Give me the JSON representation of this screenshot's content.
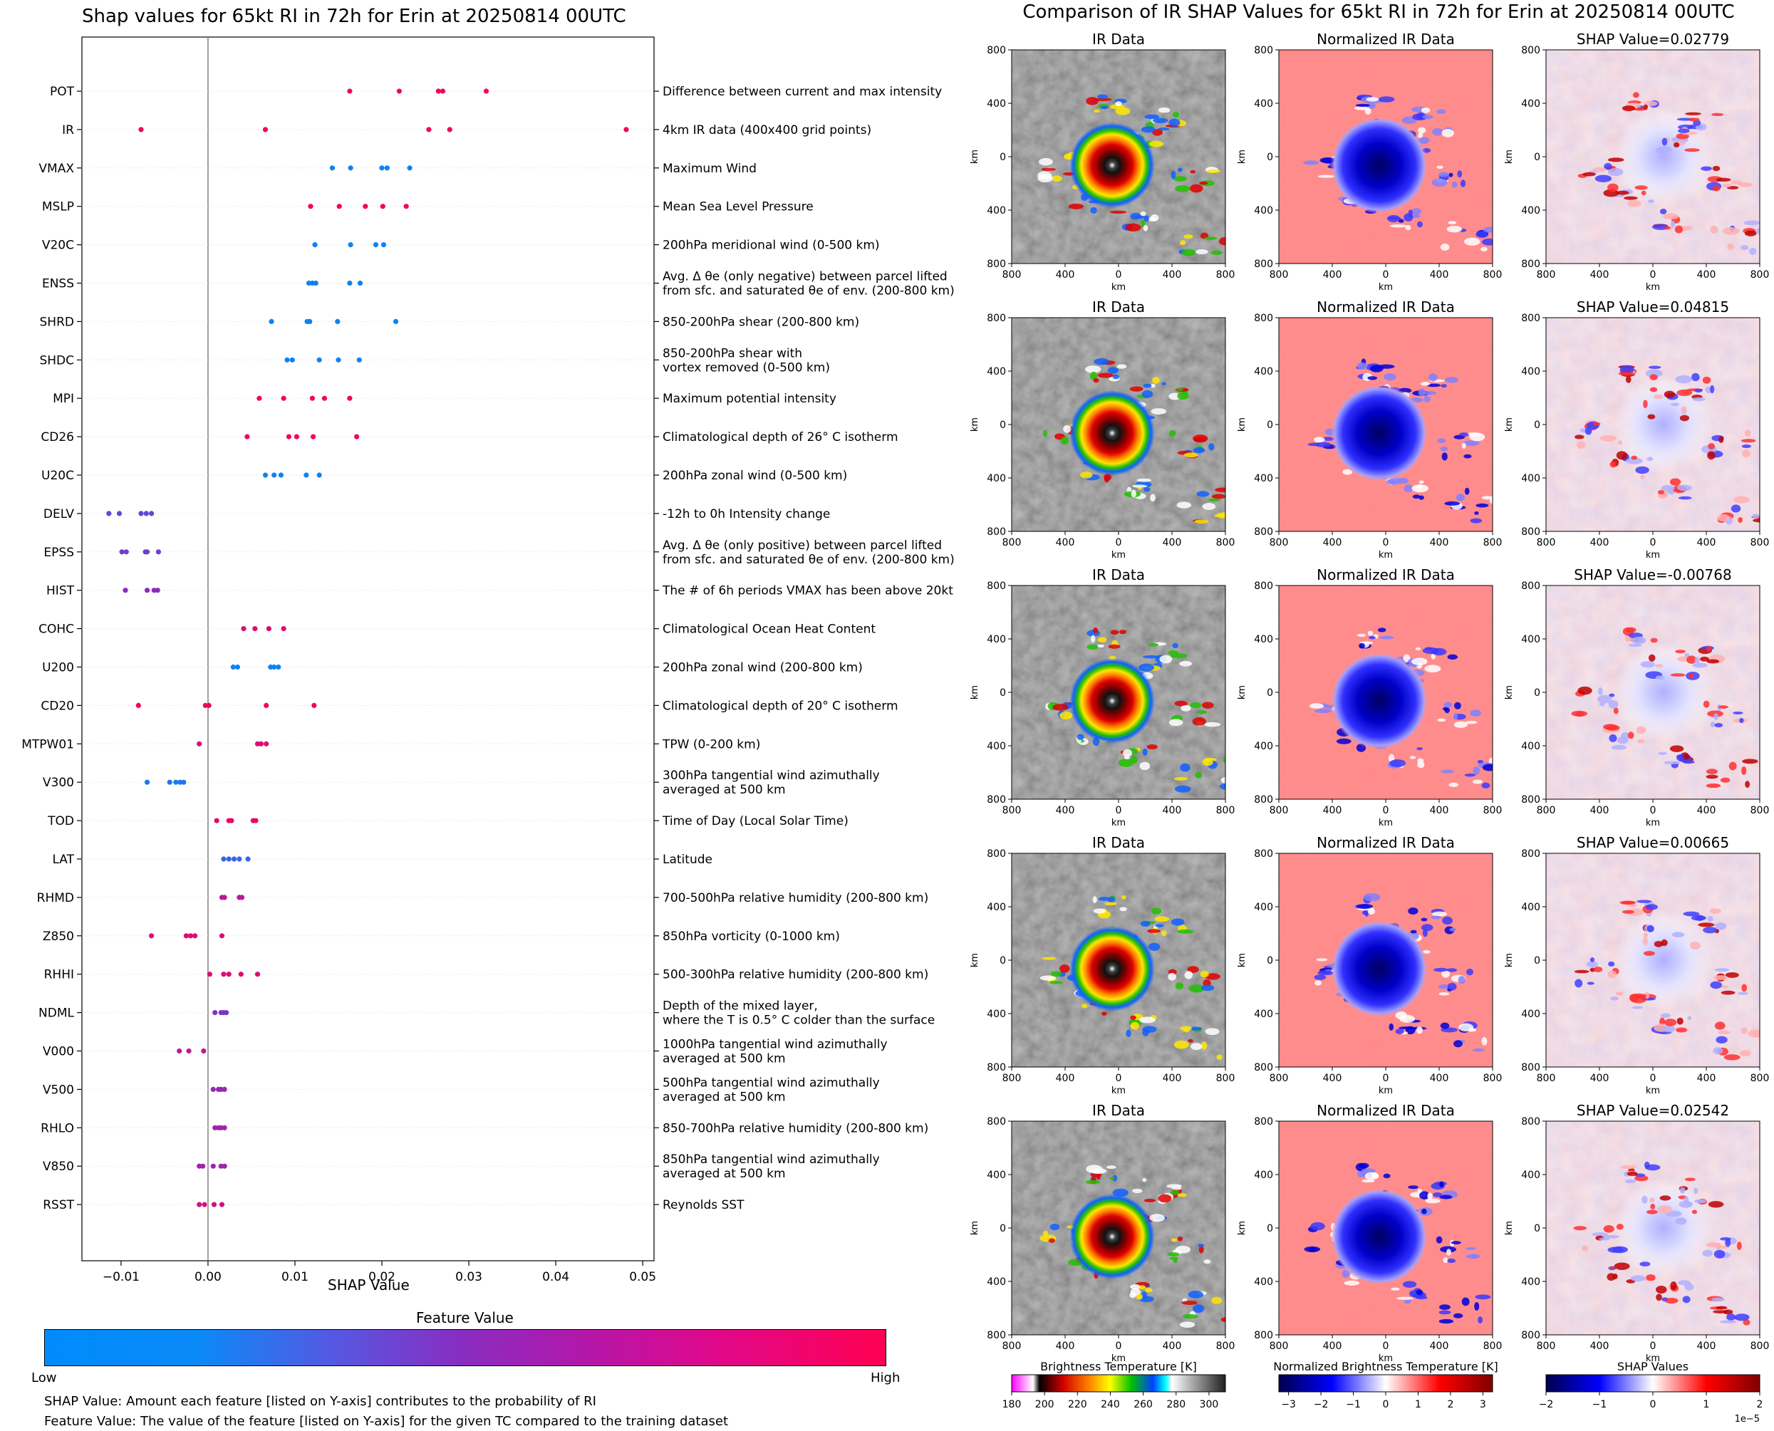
{
  "left": {
    "title": "Shap values for 65kt RI in 72h for Erin at 20250814 00UTC",
    "xlabel": "SHAP Value",
    "colorbar_title": "Feature Value",
    "colorbar_low": "Low",
    "colorbar_high": "High",
    "footnote1": "SHAP Value: Amount each feature [listed on Y-axis] contributes to the probability of RI",
    "footnote2": "Feature Value: The value of the feature [listed on Y-axis] for the given TC compared to the training dataset",
    "colors": {
      "low": "#008bfb",
      "mid": "#8a2cc0",
      "high": "#ff0052"
    }
  },
  "chart_data": [
    {
      "type": "scatter",
      "title": "Shap values for 65kt RI in 72h for Erin at 20250814 00UTC",
      "xlabel": "SHAP Value",
      "xlim": [
        -0.0145,
        0.0513
      ],
      "xticks": [
        -0.01,
        0.0,
        0.01,
        0.02,
        0.03,
        0.04,
        0.05
      ],
      "xtick_labels": [
        "−0.01",
        "0.00",
        "0.01",
        "0.02",
        "0.03",
        "0.04",
        "0.05"
      ],
      "vline_at": 0,
      "legend": "colorbar below plot (Low → High feature value)",
      "features": [
        {
          "name": "POT",
          "desc": "Difference between current and max intensity",
          "fv": 0.95,
          "shap": [
            0.0163,
            0.022,
            0.0265,
            0.027,
            0.032
          ]
        },
        {
          "name": "IR",
          "desc": "4km IR data (400x400 grid points)",
          "fv": 0.95,
          "shap": [
            -0.0077,
            0.0066,
            0.0254,
            0.0278,
            0.0481
          ]
        },
        {
          "name": "VMAX",
          "desc": "Maximum Wind",
          "fv": 0.05,
          "shap": [
            0.0143,
            0.0164,
            0.02,
            0.0206,
            0.0232
          ]
        },
        {
          "name": "MSLP",
          "desc": "Mean Sea Level Pressure",
          "fv": 0.95,
          "shap": [
            0.0118,
            0.0151,
            0.0181,
            0.0201,
            0.0228
          ]
        },
        {
          "name": "V20C",
          "desc": "200hPa meridional wind (0-500 km)",
          "fv": 0.05,
          "shap": [
            0.0123,
            0.0164,
            0.0193,
            0.0202
          ]
        },
        {
          "name": "ENSS",
          "desc": "Avg. Δ θe (only negative) between parcel lifted\nfrom sfc. and saturated θe of env. (200-800 km)",
          "fv": 0.05,
          "shap": [
            0.0116,
            0.012,
            0.0124,
            0.0163,
            0.0175
          ]
        },
        {
          "name": "SHRD",
          "desc": "850-200hPa shear (200-800 km)",
          "fv": 0.05,
          "shap": [
            0.0073,
            0.0114,
            0.0117,
            0.0149,
            0.0216
          ]
        },
        {
          "name": "SHDC",
          "desc": "850-200hPa shear with\nvortex removed (0-500 km)",
          "fv": 0.05,
          "shap": [
            0.0091,
            0.0097,
            0.0128,
            0.015,
            0.0174
          ]
        },
        {
          "name": "MPI",
          "desc": "Maximum potential intensity",
          "fv": 0.95,
          "shap": [
            0.0059,
            0.0087,
            0.012,
            0.0134,
            0.0163
          ]
        },
        {
          "name": "CD26",
          "desc": "Climatological depth of 26° C isotherm",
          "fv": 0.95,
          "shap": [
            0.0045,
            0.0093,
            0.0102,
            0.0121,
            0.0171
          ]
        },
        {
          "name": "U20C",
          "desc": "200hPa zonal wind (0-500 km)",
          "fv": 0.05,
          "shap": [
            0.0066,
            0.0076,
            0.0084,
            0.0113,
            0.0128
          ]
        },
        {
          "name": "DELV",
          "desc": "-12h to 0h Intensity change",
          "fv": 0.35,
          "shap": [
            -0.0114,
            -0.0102,
            -0.0077,
            -0.0071,
            -0.0065
          ]
        },
        {
          "name": "EPSS",
          "desc": "Avg. Δ θe (only positive) between parcel lifted\nfrom sfc. and saturated θe of env. (200-800 km)",
          "fv": 0.4,
          "shap": [
            -0.0099,
            -0.0094,
            -0.0072,
            -0.007,
            -0.0057
          ]
        },
        {
          "name": "HIST",
          "desc": "The # of 6h periods VMAX has been above 20kt",
          "fv": 0.5,
          "shap": [
            -0.0095,
            -0.007,
            -0.0062,
            -0.0058
          ]
        },
        {
          "name": "COHC",
          "desc": "Climatological Ocean Heat Content",
          "fv": 0.85,
          "shap": [
            0.0041,
            0.0054,
            0.007,
            0.0087
          ]
        },
        {
          "name": "U200",
          "desc": "200hPa zonal wind (200-800 km)",
          "fv": 0.05,
          "shap": [
            0.0029,
            0.0034,
            0.0072,
            0.0076,
            0.0081
          ]
        },
        {
          "name": "CD20",
          "desc": "Climatological depth of 20° C isotherm",
          "fv": 0.95,
          "shap": [
            -0.008,
            -0.0003,
            0.0001,
            0.0067,
            0.0122
          ]
        },
        {
          "name": "MTPW01",
          "desc": "TPW (0-200 km)",
          "fv": 0.85,
          "shap": [
            -0.001,
            0.0057,
            0.0061,
            0.0067
          ]
        },
        {
          "name": "V300",
          "desc": "300hPa tangential wind azimuthally\naveraged at 500 km",
          "fv": 0.1,
          "shap": [
            -0.007,
            -0.0044,
            -0.0037,
            -0.0032,
            -0.0028
          ]
        },
        {
          "name": "TOD",
          "desc": "Time of Day (Local Solar Time)",
          "fv": 0.9,
          "shap": [
            0.001,
            0.0024,
            0.0027,
            0.0052,
            0.0055
          ]
        },
        {
          "name": "LAT",
          "desc": "Latitude",
          "fv": 0.2,
          "shap": [
            0.0018,
            0.0024,
            0.003,
            0.0036,
            0.0046
          ]
        },
        {
          "name": "RHMD",
          "desc": "700-500hPa relative humidity (200-800 km)",
          "fv": 0.7,
          "shap": [
            0.0016,
            0.0019,
            0.0036,
            0.0039
          ]
        },
        {
          "name": "Z850",
          "desc": "850hPa vorticity (0-1000 km)",
          "fv": 0.85,
          "shap": [
            -0.0065,
            -0.0025,
            -0.002,
            -0.0015,
            0.0016
          ]
        },
        {
          "name": "RHHI",
          "desc": "500-300hPa relative humidity (200-800 km)",
          "fv": 0.85,
          "shap": [
            0.0002,
            0.0018,
            0.0024,
            0.0038,
            0.0057
          ]
        },
        {
          "name": "NDML",
          "desc": "Depth of the mixed layer,\nwhere the T is 0.5° C colder than the surface",
          "fv": 0.45,
          "shap": [
            0.0008,
            0.0015,
            0.0018,
            0.0021
          ]
        },
        {
          "name": "V000",
          "desc": "1000hPa tangential wind azimuthally\naveraged at 500 km",
          "fv": 0.7,
          "shap": [
            -0.0033,
            -0.0022,
            -0.0005
          ]
        },
        {
          "name": "V500",
          "desc": "500hPa tangential wind azimuthally\naveraged at 500 km",
          "fv": 0.55,
          "shap": [
            0.0006,
            0.0012,
            0.0015,
            0.0019
          ]
        },
        {
          "name": "RHLO",
          "desc": "850-700hPa relative humidity (200-800 km)",
          "fv": 0.6,
          "shap": [
            0.0008,
            0.0012,
            0.0015,
            0.0019
          ]
        },
        {
          "name": "V850",
          "desc": "850hPa tangential wind azimuthally\naveraged at 500 km",
          "fv": 0.6,
          "shap": [
            -0.001,
            -0.0006,
            0.0006,
            0.0015,
            0.0019
          ]
        },
        {
          "name": "RSST",
          "desc": "Reynolds SST",
          "fv": 0.8,
          "shap": [
            -0.001,
            -0.0004,
            0.0007,
            0.0016
          ]
        }
      ]
    },
    {
      "type": "heatmap",
      "title": "Comparison of IR SHAP Values for 65kt RI in 72h for Erin at 20250814 00UTC",
      "rows": [
        {
          "ir_title": "IR Data",
          "norm_title": "Normalized IR Data",
          "shap_title": "SHAP Value=0.02779"
        },
        {
          "ir_title": "IR Data",
          "norm_title": "Normalized IR Data",
          "shap_title": "SHAP Value=0.04815"
        },
        {
          "ir_title": "IR Data",
          "norm_title": "Normalized IR Data",
          "shap_title": "SHAP Value=-0.00768"
        },
        {
          "ir_title": "IR Data",
          "norm_title": "Normalized IR Data",
          "shap_title": "SHAP Value=0.00665"
        },
        {
          "ir_title": "IR Data",
          "norm_title": "Normalized IR Data",
          "shap_title": "SHAP Value=0.02542"
        }
      ],
      "axis_label": "km",
      "axis_ticks": [
        "800",
        "400",
        "0",
        "400",
        "800"
      ],
      "colorbars": [
        {
          "title": "Brightness Temperature [K]",
          "ticks": [
            "180",
            "200",
            "220",
            "240",
            "260",
            "280",
            "300"
          ],
          "range": [
            180,
            310
          ]
        },
        {
          "title": "Normalized Brightness Temperature [K]",
          "ticks": [
            "−3",
            "−2",
            "−1",
            "0",
            "1",
            "2",
            "3"
          ],
          "range": [
            -3.3,
            3.3
          ]
        },
        {
          "title": "SHAP Values",
          "ticks": [
            "−2",
            "−1",
            "0",
            "1",
            "2"
          ],
          "range": [
            -2,
            2
          ],
          "offset": "1e−5"
        }
      ]
    }
  ]
}
